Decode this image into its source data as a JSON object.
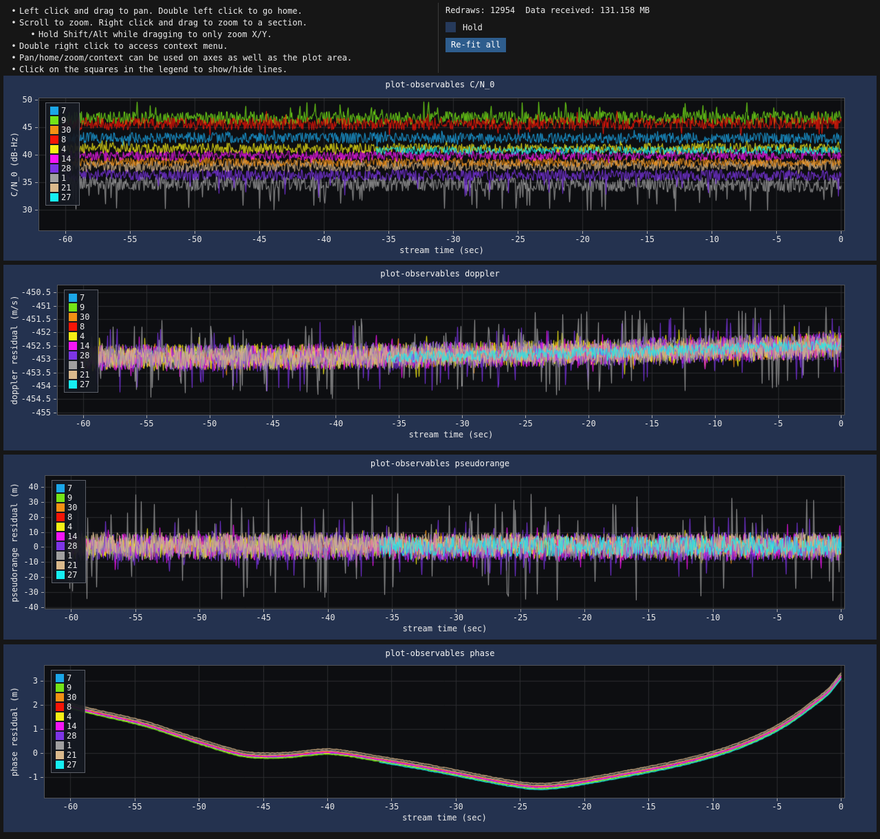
{
  "header": {
    "help_items": [
      {
        "text": "Left click and drag to pan. Double left click to go home.",
        "level": 1
      },
      {
        "text": "Scroll to zoom. Right click and drag to zoom to a section.",
        "level": 1
      },
      {
        "text": "Hold Shift/Alt while dragging to only zoom X/Y.",
        "level": 2
      },
      {
        "text": "Double right click to access context menu.",
        "level": 1
      },
      {
        "text": "Pan/home/zoom/context can be used on axes as well as the plot area.",
        "level": 1
      },
      {
        "text": "Click on the squares in the legend to show/hide lines.",
        "level": 1
      }
    ],
    "stats": {
      "redraws_label": "Redraws:",
      "redraws_value": "12954",
      "data_label": "Data received:",
      "data_value": "131.158 MB"
    },
    "hold_label": "Hold",
    "hold_checked": false,
    "refit_button": "Re-fit all"
  },
  "colors": {
    "panel": "#24324f",
    "plot_bg": "#0d0e11",
    "grid": "#2c2c30",
    "button": "#2e5d8d",
    "checkbox": "#263a5b"
  },
  "legend_entries": [
    {
      "label": "7",
      "color": "#1ba6e8"
    },
    {
      "label": "9",
      "color": "#74e417"
    },
    {
      "label": "30",
      "color": "#f39114"
    },
    {
      "label": "8",
      "color": "#f61507"
    },
    {
      "label": "4",
      "color": "#f6ee15"
    },
    {
      "label": "14",
      "color": "#f515f5"
    },
    {
      "label": "28",
      "color": "#7d35e6"
    },
    {
      "label": "1",
      "color": "#a0a0a0"
    },
    {
      "label": "21",
      "color": "#dab98c"
    },
    {
      "label": "27",
      "color": "#16eef2"
    }
  ],
  "chart_data": [
    {
      "id": "cn0",
      "type": "noise",
      "title": "plot-observables C/N_0",
      "ylabel": "C/N_0 (dB-Hz)",
      "xlabel": "stream time (sec)",
      "xlim": [
        -62,
        0.25
      ],
      "ylim": [
        26.25,
        50.25
      ],
      "xticks": [
        -60,
        -55,
        -50,
        -45,
        -40,
        -35,
        -30,
        -25,
        -20,
        -15,
        -10,
        -5,
        0
      ],
      "yticks": [
        50,
        45,
        40,
        35,
        30
      ],
      "data_start": -60.3,
      "cmode": "lin",
      "series": [
        {
          "label": "1",
          "center": [
            34.8,
            34.5
          ],
          "amp": 1.35,
          "spike_p": 0.05,
          "spike_mult": 3.6,
          "spike_dir": -1
        },
        {
          "label": "28",
          "center": [
            36.3,
            36.3
          ],
          "amp": 1.05,
          "spike_p": 0.03,
          "spike_mult": 3.8,
          "spike_dir": -1
        },
        {
          "label": "21",
          "center": [
            37.9,
            38.1
          ],
          "amp": 1.05,
          "spike_p": 0.015,
          "spike_mult": 1.5,
          "spike_dir": 0
        },
        {
          "label": "30",
          "center": [
            38.7,
            38.6
          ],
          "amp": 0.85,
          "spike_p": 0.01,
          "spike_mult": 1.4,
          "spike_dir": 0
        },
        {
          "label": "14",
          "center": [
            39.8,
            39.9
          ],
          "amp": 0.95,
          "spike_p": 0.02,
          "spike_mult": 1.6,
          "spike_dir": 0
        },
        {
          "label": "4",
          "center": [
            41.2,
            41.2
          ],
          "amp": 0.95,
          "spike_p": 0.02,
          "spike_mult": 1.6,
          "spike_dir": 0
        },
        {
          "label": "27",
          "center": [
            40.7,
            40.8
          ],
          "amp": 0.75,
          "spike_p": 0.01,
          "spike_mult": 1.4,
          "spike_dir": 0,
          "start": -36
        },
        {
          "label": "7",
          "center": [
            43.1,
            43.0
          ],
          "amp": 1.0,
          "spike_p": 0.02,
          "spike_mult": 1.6,
          "spike_dir": 0
        },
        {
          "label": "9",
          "center": [
            46.6,
            46.7
          ],
          "amp": 1.25,
          "spike_p": 0.05,
          "spike_mult": 2.4,
          "spike_dir": 1
        },
        {
          "label": "8",
          "center": [
            45.6,
            45.7
          ],
          "amp": 1.15,
          "spike_p": 0.03,
          "spike_mult": 2.0,
          "spike_dir": 0
        }
      ]
    },
    {
      "id": "doppler",
      "type": "noise",
      "title": "plot-observables doppler",
      "ylabel": "doppler residual (m/s)",
      "xlabel": "stream time (sec)",
      "xlim": [
        -62,
        0.25
      ],
      "ylim": [
        -455.08,
        -450.24
      ],
      "xticks": [
        -60,
        -55,
        -50,
        -45,
        -40,
        -35,
        -30,
        -25,
        -20,
        -15,
        -10,
        -5,
        0
      ],
      "yticks": [
        -450.5,
        -451,
        -451.5,
        -452,
        -452.5,
        -453,
        -453.5,
        -454,
        -454.5,
        -455
      ],
      "data_start": -60.3,
      "cmode": "quad",
      "series": [
        {
          "label": "7",
          "center": [
            -452.95,
            -452.5
          ],
          "amp": 0.3,
          "spike_p": 0,
          "spike_mult": 1,
          "spike_dir": 0
        },
        {
          "label": "9",
          "center": [
            -452.95,
            -452.5
          ],
          "amp": 0.3,
          "spike_p": 0,
          "spike_mult": 1,
          "spike_dir": 0
        },
        {
          "label": "8",
          "center": [
            -452.95,
            -452.5
          ],
          "amp": 0.3,
          "spike_p": 0,
          "spike_mult": 1,
          "spike_dir": 0
        },
        {
          "label": "30",
          "center": [
            -452.95,
            -452.5
          ],
          "amp": 0.45,
          "spike_p": 0.02,
          "spike_mult": 1.6,
          "spike_dir": 0
        },
        {
          "label": "4",
          "center": [
            -452.95,
            -452.5
          ],
          "amp": 0.5,
          "spike_p": 0.03,
          "spike_mult": 1.7,
          "spike_dir": 0
        },
        {
          "label": "14",
          "center": [
            -452.95,
            -452.5
          ],
          "amp": 0.5,
          "spike_p": 0.03,
          "spike_mult": 1.7,
          "spike_dir": 0
        },
        {
          "label": "28",
          "center": [
            -452.95,
            -452.5
          ],
          "amp": 0.55,
          "spike_p": 0.09,
          "spike_mult": 2.4,
          "spike_dir": 0
        },
        {
          "label": "1",
          "center": [
            -452.95,
            -452.5
          ],
          "amp": 0.5,
          "spike_p": 0.09,
          "spike_mult": 3.2,
          "spike_dir": 0
        },
        {
          "label": "21",
          "center": [
            -452.95,
            -452.5
          ],
          "amp": 0.38,
          "spike_p": 0.012,
          "spike_mult": 1.6,
          "spike_dir": 0
        },
        {
          "label": "27",
          "center": [
            -453.02,
            -452.45
          ],
          "amp": 0.22,
          "spike_p": 0.01,
          "spike_mult": 1.5,
          "spike_dir": 0,
          "start": -36
        }
      ]
    },
    {
      "id": "pseudorange",
      "type": "noise",
      "title": "plot-observables pseudorange",
      "ylabel": "pseudorange residual (m)",
      "xlabel": "stream time (sec)",
      "xlim": [
        -62,
        0.25
      ],
      "ylim": [
        -41,
        47.3
      ],
      "xticks": [
        -60,
        -55,
        -50,
        -45,
        -40,
        -35,
        -30,
        -25,
        -20,
        -15,
        -10,
        -5,
        0
      ],
      "yticks": [
        40,
        30,
        20,
        10,
        0,
        -10,
        -20,
        -30,
        -40
      ],
      "data_start": -60.3,
      "cmode": "lin",
      "series": [
        {
          "label": "7",
          "center": [
            0,
            0
          ],
          "amp": 5,
          "spike_p": 0,
          "spike_mult": 1,
          "spike_dir": 0
        },
        {
          "label": "9",
          "center": [
            0,
            0
          ],
          "amp": 5,
          "spike_p": 0,
          "spike_mult": 1,
          "spike_dir": 0
        },
        {
          "label": "8",
          "center": [
            0,
            0
          ],
          "amp": 5,
          "spike_p": 0,
          "spike_mult": 1,
          "spike_dir": 0
        },
        {
          "label": "30",
          "center": [
            0,
            0
          ],
          "amp": 7,
          "spike_p": 0.02,
          "spike_mult": 1.6,
          "spike_dir": 0
        },
        {
          "label": "4",
          "center": [
            0,
            0
          ],
          "amp": 8,
          "spike_p": 0.03,
          "spike_mult": 1.6,
          "spike_dir": 0
        },
        {
          "label": "14",
          "center": [
            0,
            0
          ],
          "amp": 9,
          "spike_p": 0.03,
          "spike_mult": 1.7,
          "spike_dir": 0
        },
        {
          "label": "28",
          "center": [
            0,
            0
          ],
          "amp": 10,
          "spike_p": 0.07,
          "spike_mult": 2.0,
          "spike_dir": 0
        },
        {
          "label": "1",
          "center": [
            0,
            0
          ],
          "amp": 9,
          "spike_p": 0.08,
          "spike_mult": 4.0,
          "spike_dir": 0
        },
        {
          "label": "21",
          "center": [
            2.5,
            2.5
          ],
          "amp": 7.5,
          "spike_p": 0.012,
          "spike_mult": 1.5,
          "spike_dir": 0
        },
        {
          "label": "27",
          "center": [
            0.5,
            0.5
          ],
          "amp": 7,
          "spike_p": 0.01,
          "spike_mult": 1.4,
          "spike_dir": 0,
          "start": -36
        }
      ]
    },
    {
      "id": "phase",
      "type": "smooth",
      "title": "plot-observables phase",
      "ylabel": "phase residual (m)",
      "xlabel": "stream time (sec)",
      "xlim": [
        -62,
        0.25
      ],
      "ylim": [
        -1.86,
        3.63
      ],
      "xticks": [
        -60,
        -55,
        -50,
        -45,
        -40,
        -35,
        -30,
        -25,
        -20,
        -15,
        -10,
        -5,
        0
      ],
      "yticks": [
        3,
        2,
        1,
        0,
        -1
      ],
      "data_start": -60.3,
      "base_curve": {
        "t": [
          -60.3,
          -58,
          -56,
          -54,
          -52,
          -50,
          -48,
          -46.5,
          -45,
          -43,
          -41.5,
          -40,
          -38.5,
          -37,
          -35,
          -33,
          -31,
          -29,
          -27,
          -25.5,
          -24,
          -22.5,
          -21,
          -19,
          -17,
          -15,
          -13,
          -11,
          -9,
          -7,
          -5,
          -3.5,
          -2,
          -1,
          0
        ],
        "v": [
          1.97,
          1.66,
          1.42,
          1.15,
          0.8,
          0.45,
          0.12,
          -0.08,
          -0.14,
          -0.11,
          -0.03,
          0.03,
          -0.05,
          -0.18,
          -0.36,
          -0.54,
          -0.74,
          -0.95,
          -1.16,
          -1.3,
          -1.4,
          -1.38,
          -1.28,
          -1.1,
          -0.9,
          -0.7,
          -0.48,
          -0.22,
          0.1,
          0.5,
          1.02,
          1.52,
          2.12,
          2.55,
          3.2
        ]
      },
      "series": [
        {
          "label": "7",
          "offset": -0.06
        },
        {
          "label": "4",
          "offset": -0.045
        },
        {
          "label": "28",
          "offset": -0.02
        },
        {
          "label": "9",
          "offset": -0.08
        },
        {
          "label": "27",
          "offset": -0.11,
          "start": -36
        },
        {
          "label": "8",
          "offset": 0.02
        },
        {
          "label": "30",
          "offset": 0.045
        },
        {
          "label": "14",
          "offset": 0.0
        },
        {
          "label": "1",
          "offset": 0.07
        },
        {
          "label": "21",
          "offset": 0.14
        }
      ]
    }
  ]
}
